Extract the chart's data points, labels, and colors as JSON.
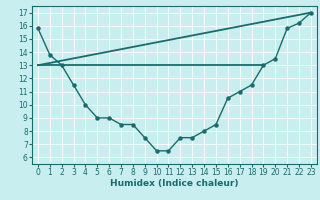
{
  "xlabel": "Humidex (Indice chaleur)",
  "bg_color": "#c8eef0",
  "line_color": "#1a6b6b",
  "grid_color": "#ffffff",
  "x_curve": [
    0,
    1,
    2,
    3,
    4,
    5,
    6,
    7,
    8,
    9,
    10,
    11,
    12,
    13,
    14,
    15,
    16,
    17,
    18,
    19,
    20,
    21,
    22,
    23
  ],
  "y_curve": [
    15.8,
    13.8,
    13.0,
    11.5,
    10.0,
    9.0,
    9.0,
    8.5,
    8.5,
    7.5,
    6.5,
    6.5,
    7.5,
    7.5,
    8.0,
    8.5,
    10.5,
    11.0,
    11.5,
    13.0,
    13.5,
    15.8,
    16.2,
    17.0
  ],
  "flat_line_x": [
    0,
    19
  ],
  "flat_line_y": [
    13.0,
    13.0
  ],
  "diag_line_x": [
    0,
    23
  ],
  "diag_line_y": [
    13.0,
    17.0
  ],
  "ylim": [
    5.5,
    17.5
  ],
  "xlim": [
    -0.5,
    23.5
  ],
  "yticks": [
    6,
    7,
    8,
    9,
    10,
    11,
    12,
    13,
    14,
    15,
    16,
    17
  ],
  "xticks": [
    0,
    1,
    2,
    3,
    4,
    5,
    6,
    7,
    8,
    9,
    10,
    11,
    12,
    13,
    14,
    15,
    16,
    17,
    18,
    19,
    20,
    21,
    22,
    23
  ],
  "tick_fontsize": 5.5,
  "xlabel_fontsize": 6.5
}
